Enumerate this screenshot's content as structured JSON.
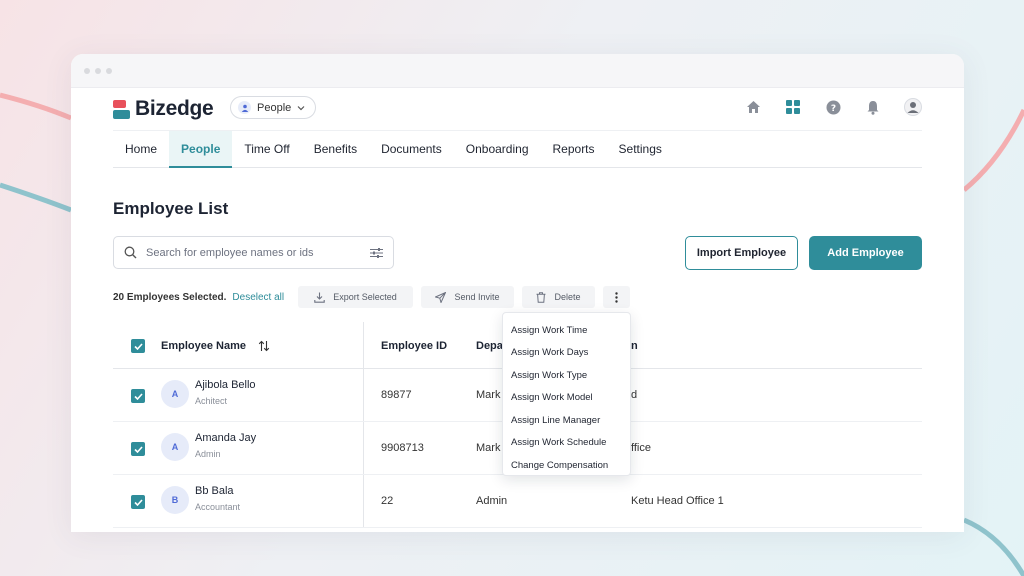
{
  "app": {
    "brand": "Bizedge",
    "product": "People",
    "accent": "#2f8d9a"
  },
  "topbar_icons": [
    "home-icon",
    "apps-grid-icon",
    "help-icon",
    "bell-icon",
    "user-avatar"
  ],
  "nav": {
    "items": [
      "Home",
      "People",
      "Time Off",
      "Benefits",
      "Documents",
      "Onboarding",
      "Reports",
      "Settings"
    ],
    "active": "People"
  },
  "page": {
    "title": "Employee List"
  },
  "search": {
    "placeholder": "Search for employee names or ids"
  },
  "actions": {
    "import": "Import Employee",
    "add": "Add Employee"
  },
  "bulk": {
    "selected_text": "20 Employees Selected.",
    "deselect": "Deselect all",
    "export": "Export Selected",
    "invite": "Send Invite",
    "delete": "Delete"
  },
  "table": {
    "headers": {
      "name": "Employee Name",
      "id": "Employee ID",
      "dept": "Depa",
      "location": "n"
    },
    "rows": [
      {
        "initial": "A",
        "name": "Ajibola Bello",
        "role": "Achitect",
        "id": "89877",
        "dept": "Mark",
        "location": "d"
      },
      {
        "initial": "A",
        "name": "Amanda Jay",
        "role": "Admin",
        "id": "9908713",
        "dept": "Mark",
        "location": "ffice"
      },
      {
        "initial": "B",
        "name": "Bb Bala",
        "role": "Accountant",
        "id": "22",
        "dept": "Admin",
        "location": "Ketu Head Office 1"
      }
    ]
  },
  "more_menu": {
    "items": [
      "Assign Work Time",
      "Assign Work Days",
      "Assign Work Type",
      "Assign Work Model",
      "Assign Line Manager",
      "Assign Work Schedule",
      "Change Compensation"
    ]
  }
}
